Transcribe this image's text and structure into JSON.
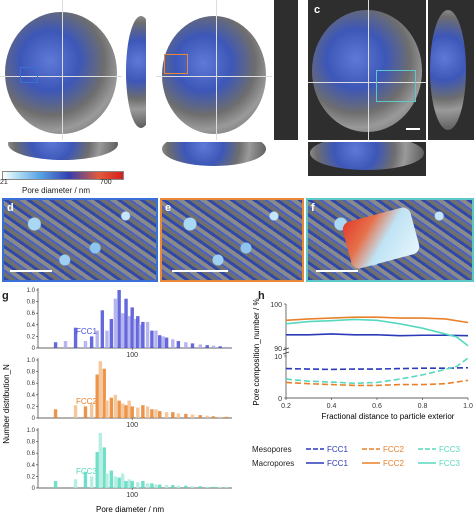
{
  "panel_labels": [
    "a",
    "b",
    "c",
    "d",
    "e",
    "f",
    "g",
    "h"
  ],
  "colorbar": {
    "min_label": "21",
    "max_label": "700",
    "title": "Pore diameter / nm"
  },
  "axis_glyph_labels": [
    "x",
    "y",
    "z"
  ],
  "zoom_border_colors": {
    "d": "#3a6fd8",
    "e": "#e8873a",
    "f": "#5cc8c8"
  },
  "chart_data": [
    {
      "type": "bar",
      "title": "",
      "xlabel": "Pore diameter / nm",
      "ylabel": "Number distribution_N",
      "x_scale": "log",
      "x_tick_labels": [
        "100"
      ],
      "y_ticks": [
        0,
        0.2,
        0.4,
        0.6,
        0.8,
        1.0
      ],
      "y_tick_labels": [
        "0",
        "0.2",
        "0.4",
        "0.6",
        "0.8",
        "1.0"
      ],
      "series": [
        {
          "name": "FCC1",
          "color": "#4b4fd6",
          "light_color": "#a9a8ec",
          "x": [
            27,
            32,
            38,
            45,
            50,
            55,
            60,
            65,
            70,
            75,
            80,
            85,
            90,
            95,
            100,
            105,
            110,
            115,
            120,
            130,
            140,
            150,
            160,
            170,
            180,
            200,
            220,
            250,
            280,
            320,
            360,
            400,
            450,
            500
          ],
          "values": [
            0.1,
            0.12,
            0.35,
            0.12,
            0.2,
            0.3,
            0.65,
            0.3,
            0.5,
            0.85,
            1.0,
            0.6,
            0.85,
            0.55,
            0.7,
            0.5,
            0.55,
            0.4,
            0.45,
            0.45,
            0.3,
            0.3,
            0.22,
            0.2,
            0.18,
            0.15,
            0.12,
            0.1,
            0.08,
            0.06,
            0.05,
            0.04,
            0.03,
            0.02
          ]
        },
        {
          "name": "FCC2",
          "color": "#e8812a",
          "light_color": "#f4bd8a",
          "x": [
            27,
            38,
            45,
            50,
            55,
            58,
            62,
            65,
            70,
            75,
            80,
            85,
            90,
            95,
            100,
            110,
            120,
            130,
            140,
            150,
            160,
            180,
            200,
            220,
            250,
            280,
            320,
            360,
            400,
            450,
            500
          ],
          "values": [
            0.15,
            0.22,
            0.2,
            0.25,
            0.75,
            0.98,
            0.85,
            0.3,
            0.35,
            0.4,
            0.3,
            0.25,
            0.22,
            0.3,
            0.2,
            0.18,
            0.22,
            0.2,
            0.15,
            0.15,
            0.12,
            0.1,
            0.1,
            0.08,
            0.07,
            0.06,
            0.05,
            0.04,
            0.03,
            0.02,
            0.02
          ]
        },
        {
          "name": "FCC3",
          "color": "#57d9bf",
          "light_color": "#a9ecdc",
          "x": [
            27,
            38,
            45,
            50,
            55,
            58,
            62,
            65,
            70,
            75,
            80,
            85,
            90,
            95,
            100,
            110,
            120,
            130,
            140,
            150,
            160,
            180,
            200,
            220,
            250,
            280,
            320,
            360,
            400,
            450,
            500
          ],
          "values": [
            0.12,
            0.15,
            0.28,
            0.2,
            0.62,
            0.95,
            0.7,
            0.25,
            0.3,
            0.2,
            0.18,
            0.25,
            0.12,
            0.15,
            0.12,
            0.1,
            0.12,
            0.08,
            0.08,
            0.06,
            0.06,
            0.05,
            0.05,
            0.04,
            0.04,
            0.03,
            0.03,
            0.02,
            0.02,
            0.02,
            0.01
          ]
        }
      ]
    },
    {
      "type": "line",
      "title": "",
      "xlabel": "Fractional distance to particle exterior",
      "ylabel": "Pore composition_number / %",
      "xlim": [
        0.2,
        1.0
      ],
      "x_ticks": [
        0.2,
        0.4,
        0.6,
        0.8,
        1.0
      ],
      "x_tick_labels": [
        "0.2",
        "0.4",
        "0.6",
        "0.8",
        "1.0"
      ],
      "y_tick_labels": [
        "100",
        "90",
        "10",
        "0"
      ],
      "y_axis_break": true,
      "legend": {
        "position": "bottom",
        "row_labels": [
          "Mesopores",
          "Macropores"
        ]
      },
      "series": [
        {
          "name": "FCC1",
          "group": "Macropores",
          "color": "#2a3ab8",
          "style": "solid",
          "x": [
            0.2,
            0.3,
            0.4,
            0.5,
            0.6,
            0.7,
            0.8,
            0.9,
            1.0
          ],
          "values": [
            93,
            93,
            93.2,
            93,
            93,
            92.8,
            92.9,
            92.9,
            92.8
          ]
        },
        {
          "name": "FCC2",
          "group": "Macropores",
          "color": "#e8812a",
          "style": "solid",
          "x": [
            0.2,
            0.3,
            0.4,
            0.5,
            0.6,
            0.7,
            0.8,
            0.9,
            1.0
          ],
          "values": [
            96.3,
            96.6,
            96.8,
            97,
            97,
            96.8,
            96.8,
            96.6,
            95.8
          ]
        },
        {
          "name": "FCC3",
          "group": "Macropores",
          "color": "#57d9bf",
          "style": "solid",
          "x": [
            0.2,
            0.3,
            0.4,
            0.5,
            0.6,
            0.7,
            0.8,
            0.9,
            0.95,
            1.0
          ],
          "values": [
            95.5,
            96,
            96.2,
            96.5,
            96.3,
            95.5,
            94.5,
            93.2,
            92.5,
            90.5
          ]
        },
        {
          "name": "FCC1",
          "group": "Mesopores",
          "color": "#2a3ab8",
          "style": "dashed",
          "x": [
            0.2,
            0.3,
            0.4,
            0.5,
            0.6,
            0.7,
            0.8,
            0.9,
            1.0
          ],
          "values": [
            7,
            6.9,
            6.8,
            6.9,
            6.9,
            7,
            7.1,
            7.1,
            7.2
          ]
        },
        {
          "name": "FCC2",
          "group": "Mesopores",
          "color": "#e8812a",
          "style": "dashed",
          "x": [
            0.2,
            0.3,
            0.4,
            0.5,
            0.6,
            0.7,
            0.8,
            0.9,
            1.0
          ],
          "values": [
            3.7,
            3.4,
            3.2,
            3,
            3,
            3.2,
            3.2,
            3.4,
            4.2
          ]
        },
        {
          "name": "FCC3",
          "group": "Mesopores",
          "color": "#57d9bf",
          "style": "dashed",
          "x": [
            0.2,
            0.3,
            0.4,
            0.5,
            0.6,
            0.7,
            0.8,
            0.9,
            0.95,
            1.0
          ],
          "values": [
            4.5,
            4,
            3.8,
            3.5,
            3.7,
            4.5,
            5.5,
            6.8,
            7.5,
            9.5
          ]
        }
      ]
    }
  ]
}
